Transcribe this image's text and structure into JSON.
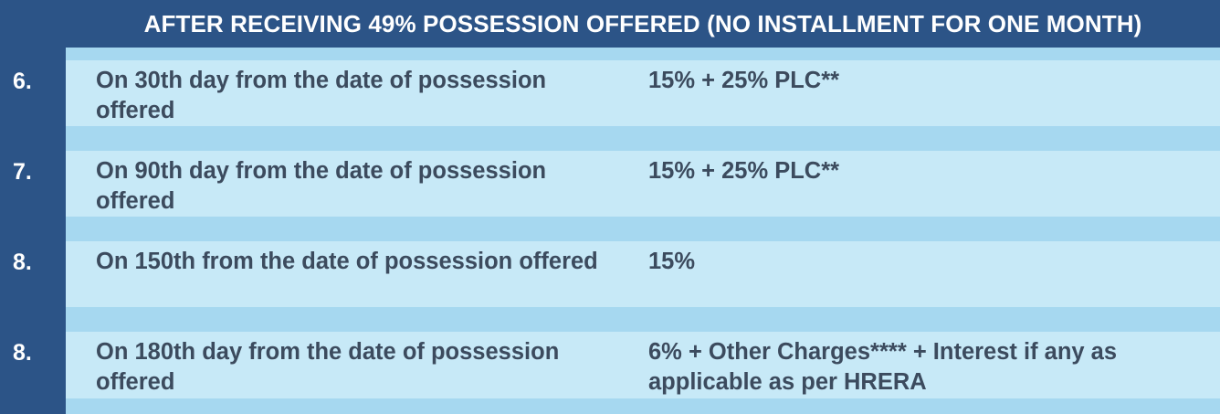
{
  "header": {
    "title": "AFTER RECEIVING 49% POSSESSION OFFERED (NO INSTALLMENT FOR ONE MONTH)"
  },
  "rows": [
    {
      "number": "6.",
      "description": "On 30th day from the date of possession offered",
      "amount": "15% + 25% PLC**"
    },
    {
      "number": "7.",
      "description": "On 90th day from the date of possession offered",
      "amount": "15% + 25% PLC**"
    },
    {
      "number": "8.",
      "description": "On 150th from the date of possession offered",
      "amount": "15%"
    },
    {
      "number": "8.",
      "description": "On 180th day from the date of possession offered",
      "amount": "6% + Other Charges**** + Interest if any as applicable as per HRERA"
    }
  ],
  "colors": {
    "navy": "#2c5487",
    "row_light": "#c7e9f7",
    "row_separator": "#a6d8f0",
    "text_dark": "#3c4b5e",
    "text_white": "#ffffff"
  }
}
